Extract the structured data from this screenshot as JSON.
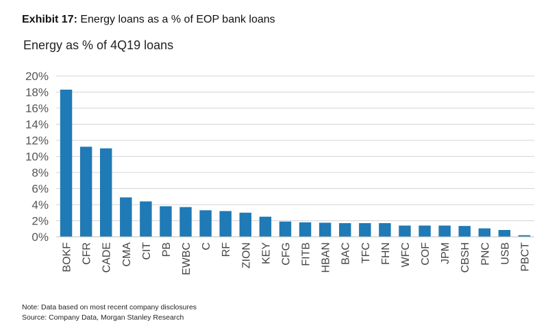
{
  "header": {
    "exhibit_label": "Exhibit 17:",
    "exhibit_title": "Energy loans as a % of EOP bank loans"
  },
  "chart_data": {
    "type": "bar",
    "title": "Energy as % of 4Q19 loans",
    "xlabel": "",
    "ylabel": "",
    "ylim": [
      0,
      20
    ],
    "yticks": [
      "0%",
      "2%",
      "4%",
      "6%",
      "8%",
      "10%",
      "12%",
      "14%",
      "16%",
      "18%",
      "20%"
    ],
    "grid": true,
    "bar_color": "#1f7ab5",
    "categories": [
      "BOKF",
      "CFR",
      "CADE",
      "CMA",
      "CIT",
      "PB",
      "EWBC",
      "C",
      "RF",
      "ZION",
      "KEY",
      "CFG",
      "FITB",
      "HBAN",
      "BAC",
      "TFC",
      "FHN",
      "WFC",
      "COF",
      "JPM",
      "CBSH",
      "PNC",
      "USB",
      "PBCT"
    ],
    "values": [
      18.3,
      11.2,
      11.0,
      4.9,
      4.4,
      3.8,
      3.7,
      3.3,
      3.2,
      3.0,
      2.5,
      1.9,
      1.8,
      1.75,
      1.7,
      1.7,
      1.7,
      1.4,
      1.4,
      1.4,
      1.35,
      1.05,
      0.85,
      0.2
    ]
  },
  "footer": {
    "note": "Note: Data based on most recent company disclosures",
    "source": "Source: Company Data, Morgan Stanley Research"
  }
}
